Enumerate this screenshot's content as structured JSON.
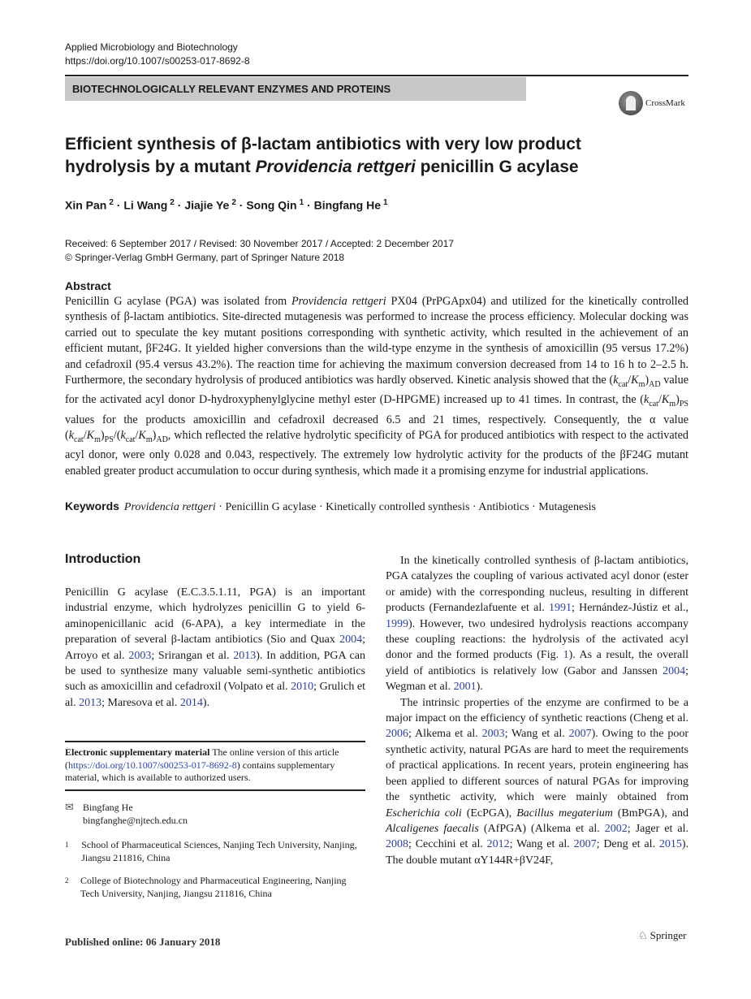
{
  "header": {
    "journal": "Applied Microbiology and Biotechnology",
    "doi": "https://doi.org/10.1007/s00253-017-8692-8",
    "section": "BIOTECHNOLOGICALLY RELEVANT ENZYMES AND PROTEINS",
    "crossmark": "CrossMark"
  },
  "title": {
    "part1": "Efficient synthesis of β-lactam antibiotics with very low product hydrolysis by a mutant ",
    "italic": "Providencia rettgeri",
    "part2": " penicillin G acylase"
  },
  "authors": [
    {
      "name": "Xin Pan",
      "aff": "2"
    },
    {
      "name": "Li Wang",
      "aff": "2"
    },
    {
      "name": "Jiajie Ye",
      "aff": "2"
    },
    {
      "name": "Song Qin",
      "aff": "1"
    },
    {
      "name": "Bingfang He",
      "aff": "1"
    }
  ],
  "dates": {
    "line1": "Received: 6 September 2017 / Revised: 30 November 2017 / Accepted: 2 December 2017",
    "line2": "© Springer-Verlag GmbH Germany, part of Springer Nature 2018"
  },
  "abstract": {
    "heading": "Abstract",
    "runs": [
      [
        "Penicillin G acylase (PGA) was isolated from ",
        ""
      ],
      [
        "Providencia rettgeri",
        "it"
      ],
      [
        " PX04 (PrPGApx04) and utilized for the kinetically controlled synthesis of β-lactam antibiotics. Site-directed mutagenesis was performed to increase the process efficiency. Molecular docking was carried out to speculate the key mutant positions corresponding with synthetic activity, which resulted in the achievement of an efficient mutant, βF24G. It yielded higher conversions than the wild-type enzyme in the synthesis of amoxicillin (95 versus 17.2%) and cefadroxil (95.4 versus 43.2%). The reaction time for achieving the maximum conversion decreased from 14 to 16 h to 2–2.5 h. Furthermore, the secondary hydrolysis of produced antibiotics was hardly observed. Kinetic analysis showed that the (",
        ""
      ],
      [
        "k",
        "it"
      ],
      [
        "cat",
        "sub"
      ],
      [
        "/",
        ""
      ],
      [
        "K",
        "it"
      ],
      [
        "m",
        "sub"
      ],
      [
        ")",
        ""
      ],
      [
        "AD",
        "sub"
      ],
      [
        " value for the activated acyl donor D-hydroxyphenylglycine methyl ester (D-HPGME) increased up to 41 times. In contrast, the (",
        ""
      ],
      [
        "k",
        "it"
      ],
      [
        "cat",
        "sub"
      ],
      [
        "/",
        ""
      ],
      [
        "K",
        "it"
      ],
      [
        "m",
        "sub"
      ],
      [
        ")",
        ""
      ],
      [
        "PS",
        "sub"
      ],
      [
        " values for the products amoxicillin and cefadroxil decreased 6.5 and 21 times, respectively. Consequently, the α value (",
        ""
      ],
      [
        "k",
        "it"
      ],
      [
        "cat",
        "sub"
      ],
      [
        "/",
        ""
      ],
      [
        "K",
        "it"
      ],
      [
        "m",
        "sub"
      ],
      [
        ")",
        ""
      ],
      [
        "PS",
        "sub"
      ],
      [
        "/(",
        ""
      ],
      [
        "k",
        "it"
      ],
      [
        "cat",
        "sub"
      ],
      [
        "/",
        ""
      ],
      [
        "K",
        "it"
      ],
      [
        "m",
        "sub"
      ],
      [
        ")",
        ""
      ],
      [
        "AD",
        "sub"
      ],
      [
        ", which reflected the relative hydrolytic specificity of PGA for produced antibiotics with respect to the activated acyl donor, were only 0.028 and 0.043, respectively. The extremely low hydrolytic activity for the products of the βF24G mutant enabled greater product accumulation to occur during synthesis, which made it a promising enzyme for industrial applications.",
        ""
      ]
    ]
  },
  "keywords": {
    "heading": "Keywords",
    "items": [
      "Providencia rettgeri",
      "Penicillin G acylase",
      "Kinetically controlled synthesis",
      "Antibiotics",
      "Mutagenesis"
    ]
  },
  "introduction": {
    "heading": "Introduction",
    "left_paragraphs": [
      [
        [
          "Penicillin G acylase (E.C.3.5.1.11, PGA) is an important industrial enzyme, which hydrolyzes penicillin G to yield 6-aminopenicillanic acid (6-APA), a key intermediate in the preparation of several β-lactam antibiotics (Sio and Quax ",
          ""
        ],
        [
          "2004",
          "link"
        ],
        [
          "; Arroyo et al. ",
          ""
        ],
        [
          "2003",
          "link"
        ],
        [
          "; Srirangan et al. ",
          ""
        ],
        [
          "2013",
          "link"
        ],
        [
          "). In addition, PGA can be used to synthesize many valuable semi-synthetic antibiotics such as amoxicillin and cefadroxil (Volpato et al. ",
          ""
        ],
        [
          "2010",
          "link"
        ],
        [
          "; Grulich et al. ",
          ""
        ],
        [
          "2013",
          "link"
        ],
        [
          "; Maresova et al. ",
          ""
        ],
        [
          "2014",
          "link"
        ],
        [
          ").",
          ""
        ]
      ]
    ],
    "right_paragraphs": [
      [
        [
          "In the kinetically controlled synthesis of β-lactam antibiotics, PGA catalyzes the coupling of various activated acyl donor (ester or amide) with the corresponding nucleus, resulting in different products (Fernandezlafuente et al. ",
          ""
        ],
        [
          "1991",
          "link"
        ],
        [
          "; Hernández-Jústiz et al., ",
          ""
        ],
        [
          "1999",
          "link"
        ],
        [
          "). However, two undesired hydrolysis reactions accompany these coupling reactions: the hydrolysis of the activated acyl donor and the formed products (Fig. ",
          ""
        ],
        [
          "1",
          "link"
        ],
        [
          "). As a result, the overall yield of antibiotics is relatively low (Gabor and Janssen ",
          ""
        ],
        [
          "2004",
          "link"
        ],
        [
          "; Wegman et al. ",
          ""
        ],
        [
          "2001",
          "link"
        ],
        [
          ").",
          ""
        ]
      ],
      [
        [
          "The intrinsic properties of the enzyme are confirmed to be a major impact on the efficiency of synthetic reactions (Cheng et al. ",
          ""
        ],
        [
          "2006",
          "link"
        ],
        [
          "; Alkema et al. ",
          ""
        ],
        [
          "2003",
          "link"
        ],
        [
          "; Wang et al. ",
          ""
        ],
        [
          "2007",
          "link"
        ],
        [
          "). Owing to the poor synthetic activity, natural PGAs are hard to meet the requirements of practical applications. In recent years, protein engineering has been applied to different sources of natural PGAs for improving the synthetic activity, which were mainly obtained from ",
          ""
        ],
        [
          "Escherichia coli",
          "it"
        ],
        [
          " (EcPGA), ",
          ""
        ],
        [
          "Bacillus megaterium",
          "it"
        ],
        [
          " (BmPGA), and ",
          ""
        ],
        [
          "Alcaligenes faecalis",
          "it"
        ],
        [
          " (AfPGA) (Alkema et al. ",
          ""
        ],
        [
          "2002",
          "link"
        ],
        [
          "; Jager et al. ",
          ""
        ],
        [
          "2008",
          "link"
        ],
        [
          "; Cecchini et al. ",
          ""
        ],
        [
          "2012",
          "link"
        ],
        [
          "; Wang et al. ",
          ""
        ],
        [
          "2007",
          "link"
        ],
        [
          "; Deng et al. ",
          ""
        ],
        [
          "2015",
          "link"
        ],
        [
          "). The double mutant αY144R+βV24F,",
          ""
        ]
      ]
    ]
  },
  "supplementary": {
    "heading": "Electronic supplementary material",
    "text1": " The online version of this article (",
    "link": "https://doi.org/10.1007/s00253-017-8692-8",
    "text2": ") contains supplementary material, which is available to authorized users."
  },
  "contact": {
    "name": "Bingfang He",
    "email": "bingfanghe@njtech.edu.cn"
  },
  "affiliations": [
    {
      "num": "1",
      "text": "School of Pharmaceutical Sciences, Nanjing Tech University, Nanjing, Jiangsu 211816, China"
    },
    {
      "num": "2",
      "text": "College of Biotechnology and Pharmaceutical Engineering, Nanjing Tech University, Nanjing, Jiangsu 211816, China"
    }
  ],
  "footer": {
    "published": "Published online: 06 January 2018",
    "publisher": "Springer"
  },
  "colors": {
    "link": "#2c3fa8",
    "band": "#c8c8c8"
  }
}
